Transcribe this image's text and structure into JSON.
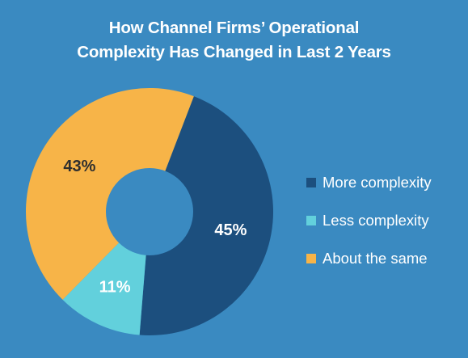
{
  "title_lines": [
    "How Channel Firms’ Operational",
    "Complexity Has Changed in Last 2 Years"
  ],
  "chart_data": {
    "type": "pie",
    "donut": true,
    "categories": [
      "More complexity",
      "Less complexity",
      "About the same"
    ],
    "values": [
      45,
      11,
      43
    ],
    "data_labels": [
      "45%",
      "11%",
      "43%"
    ],
    "colors": [
      "#1c4f7e",
      "#62d0dc",
      "#f7b448"
    ],
    "label_colors": [
      "#ffffff",
      "#ffffff",
      "#2e2e2e"
    ],
    "legend_position": "right",
    "title": "How Channel Firms’ Operational Complexity Has Changed in Last 2 Years"
  },
  "colors": {
    "background": "#3a8ac1",
    "hole": "#3a8ac1",
    "text": "#ffffff"
  }
}
